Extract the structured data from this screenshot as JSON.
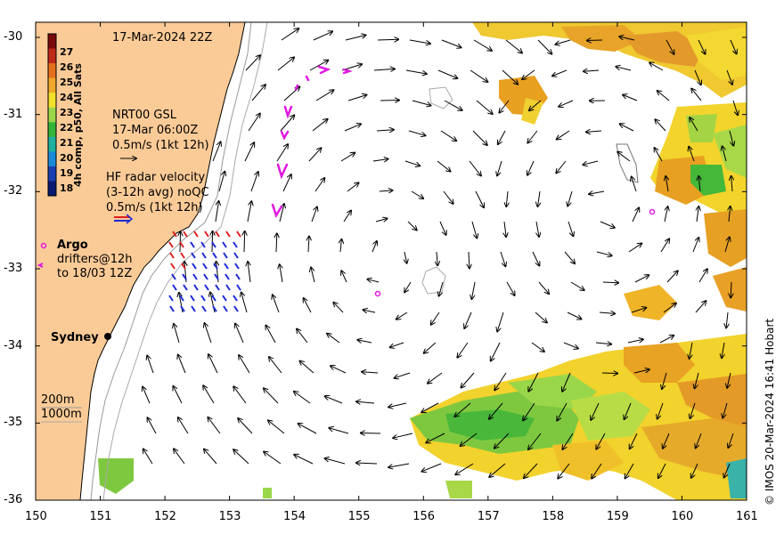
{
  "map": {
    "date_label": "17-Mar-2024 22Z",
    "credit": "© IMOS 20-Mar-2024 16:41 Hobart",
    "x_ticks": [
      "150",
      "151",
      "152",
      "153",
      "154",
      "155",
      "156",
      "157",
      "158",
      "159",
      "160",
      "161"
    ],
    "y_ticks": [
      "-30",
      "-31",
      "-32",
      "-33",
      "-34",
      "-35",
      "-36"
    ],
    "colorbar": {
      "title": "4h comp, p50, All Sats",
      "ticks": [
        "27",
        "26",
        "25",
        "24",
        "23",
        "22",
        "21",
        "20",
        "19",
        "18"
      ],
      "colors": [
        "#7a0b0b",
        "#c0281a",
        "#e4701c",
        "#f0a82a",
        "#f2e02a",
        "#9ad64a",
        "#35b43a",
        "#1fb0a0",
        "#1a8ad8",
        "#1a3fb0",
        "#0b1a70"
      ]
    },
    "legend": {
      "gsl_line1": "NRT00 GSL",
      "gsl_line2": "17-Mar 06:00Z",
      "gsl_line3": "0.5m/s (1kt 12h)",
      "hf_line1": "HF radar velocity",
      "hf_line2": "(3-12h avg) noQC",
      "hf_line3": "0.5m/s (1kt 12h)",
      "argo": "Argo",
      "drifters_line1": "drifters@12h",
      "drifters_line2": "to 18/03 12Z"
    },
    "city": "Sydney",
    "isobath_200": "200m",
    "isobath_1000": "1000m",
    "colors": {
      "land": "#fbcb97",
      "argo": "#e018e0",
      "hf_red": "#e02020",
      "hf_blue": "#1a2ad8",
      "vector": "#000000"
    }
  }
}
